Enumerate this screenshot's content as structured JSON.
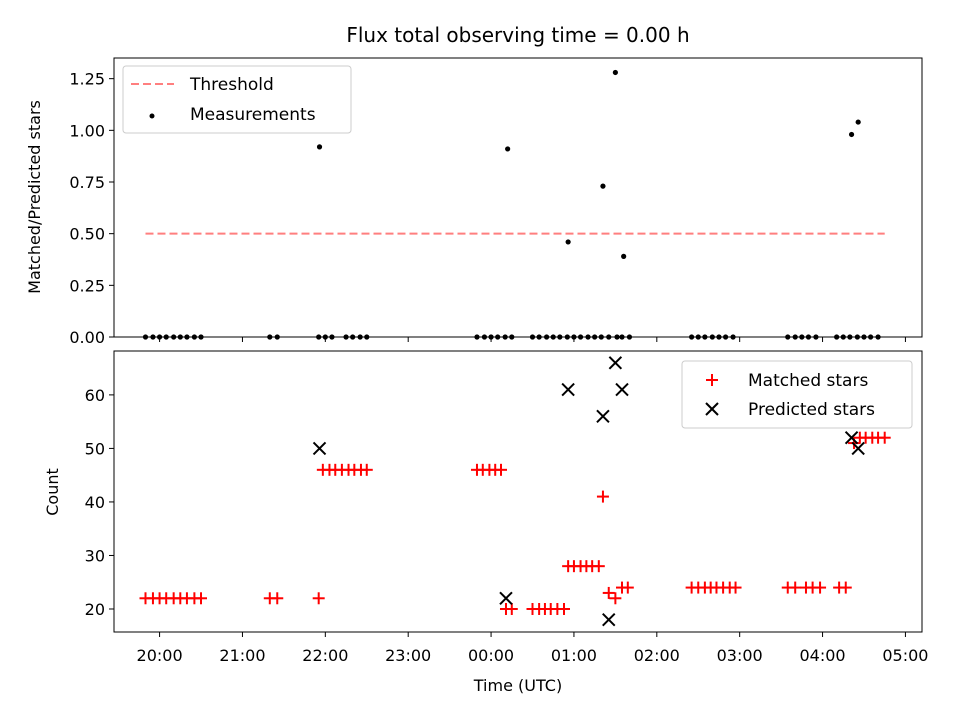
{
  "chart_data": [
    {
      "type": "scatter",
      "title": "Flux total observing time = 0.00 h",
      "xlabel": "",
      "ylabel": "Matched/Predicted stars",
      "ylim": [
        0,
        1.35
      ],
      "yticks": [
        "0.00",
        "0.25",
        "0.50",
        "0.75",
        "1.00",
        "1.25"
      ],
      "ytick_values": [
        0,
        0.25,
        0.5,
        0.75,
        1.0,
        1.25
      ],
      "legend_position": "upper-left",
      "legend": [
        "Threshold",
        "Measurements"
      ],
      "threshold": {
        "name": "Threshold",
        "y": 0.5,
        "x_start": 19.83,
        "x_end": 28.75,
        "color": "#ff7f7f",
        "style": "dashed"
      },
      "series": [
        {
          "name": "Measurements",
          "marker": "dot",
          "color": "#000000",
          "x": [
            19.83,
            19.92,
            20.0,
            20.08,
            20.17,
            20.25,
            20.33,
            20.42,
            20.5,
            21.33,
            21.42,
            21.92,
            21.93,
            22.0,
            22.08,
            22.25,
            22.33,
            22.42,
            22.5,
            23.83,
            23.92,
            24.0,
            24.08,
            24.17,
            24.2,
            24.25,
            24.5,
            24.58,
            24.67,
            24.75,
            24.83,
            24.92,
            24.93,
            25.0,
            25.08,
            25.17,
            25.25,
            25.33,
            25.35,
            25.42,
            25.5,
            25.52,
            25.58,
            25.6,
            25.67,
            26.42,
            26.5,
            26.58,
            26.67,
            26.75,
            26.83,
            26.92,
            27.58,
            27.67,
            27.75,
            27.83,
            27.92,
            28.17,
            28.25,
            28.33,
            28.35,
            28.42,
            28.43,
            28.5,
            28.58,
            28.67
          ],
          "y": [
            0,
            0,
            0,
            0,
            0,
            0,
            0,
            0,
            0,
            0,
            0,
            0,
            0.92,
            0,
            0,
            0,
            0,
            0,
            0,
            0,
            0,
            0,
            0,
            0,
            0.91,
            0,
            0,
            0,
            0,
            0,
            0,
            0,
            0.46,
            0,
            0,
            0,
            0,
            0,
            0.73,
            0,
            1.28,
            0,
            0,
            0.39,
            0,
            0,
            0,
            0,
            0,
            0,
            0,
            0,
            0,
            0,
            0,
            0,
            0,
            0,
            0,
            0,
            0.98,
            0,
            1.04,
            0,
            0,
            0
          ]
        }
      ]
    },
    {
      "type": "scatter",
      "title": "",
      "xlabel": "Time (UTC)",
      "ylabel": "Count",
      "ylim": [
        15.7,
        68.2
      ],
      "yticks": [
        "20",
        "30",
        "40",
        "50",
        "60"
      ],
      "ytick_values": [
        20,
        30,
        40,
        50,
        60
      ],
      "xlim": [
        19.45,
        29.2
      ],
      "xticks": [
        "20:00",
        "21:00",
        "22:00",
        "23:00",
        "00:00",
        "01:00",
        "02:00",
        "03:00",
        "04:00",
        "05:00"
      ],
      "xtick_values": [
        20,
        21,
        22,
        23,
        24,
        25,
        26,
        27,
        28,
        29
      ],
      "legend_position": "upper-right",
      "legend": [
        "Matched stars",
        "Predicted stars"
      ],
      "series": [
        {
          "name": "Matched stars",
          "marker": "plus",
          "color": "#ff0000",
          "x": [
            19.83,
            19.92,
            20.0,
            20.08,
            20.17,
            20.25,
            20.33,
            20.42,
            20.5,
            21.33,
            21.42,
            21.92,
            21.97,
            22.05,
            22.12,
            22.2,
            22.28,
            22.35,
            22.43,
            22.5,
            23.83,
            23.9,
            23.98,
            24.05,
            24.12,
            24.18,
            24.25,
            24.5,
            24.58,
            24.65,
            24.72,
            24.8,
            24.88,
            24.93,
            25.0,
            25.08,
            25.15,
            25.22,
            25.3,
            25.35,
            25.42,
            25.5,
            25.58,
            25.65,
            26.42,
            26.5,
            26.58,
            26.65,
            26.72,
            26.8,
            26.88,
            26.95,
            27.58,
            27.67,
            27.8,
            27.88,
            27.97,
            28.2,
            28.28,
            28.38,
            28.45,
            28.52,
            28.6,
            28.67,
            28.75
          ],
          "y": [
            22,
            22,
            22,
            22,
            22,
            22,
            22,
            22,
            22,
            22,
            22,
            22,
            46,
            46,
            46,
            46,
            46,
            46,
            46,
            46,
            46,
            46,
            46,
            46,
            46,
            20,
            20,
            20,
            20,
            20,
            20,
            20,
            20,
            28,
            28,
            28,
            28,
            28,
            28,
            41,
            23,
            22,
            24,
            24,
            24,
            24,
            24,
            24,
            24,
            24,
            24,
            24,
            24,
            24,
            24,
            24,
            24,
            24,
            24,
            51,
            52,
            52,
            52,
            52,
            52
          ]
        },
        {
          "name": "Predicted stars",
          "marker": "x",
          "color": "#000000",
          "x": [
            21.93,
            24.18,
            24.93,
            25.35,
            25.42,
            25.5,
            25.58,
            28.35,
            28.43
          ],
          "y": [
            50,
            22,
            61,
            56,
            18,
            66,
            61,
            52,
            50
          ]
        }
      ]
    }
  ]
}
